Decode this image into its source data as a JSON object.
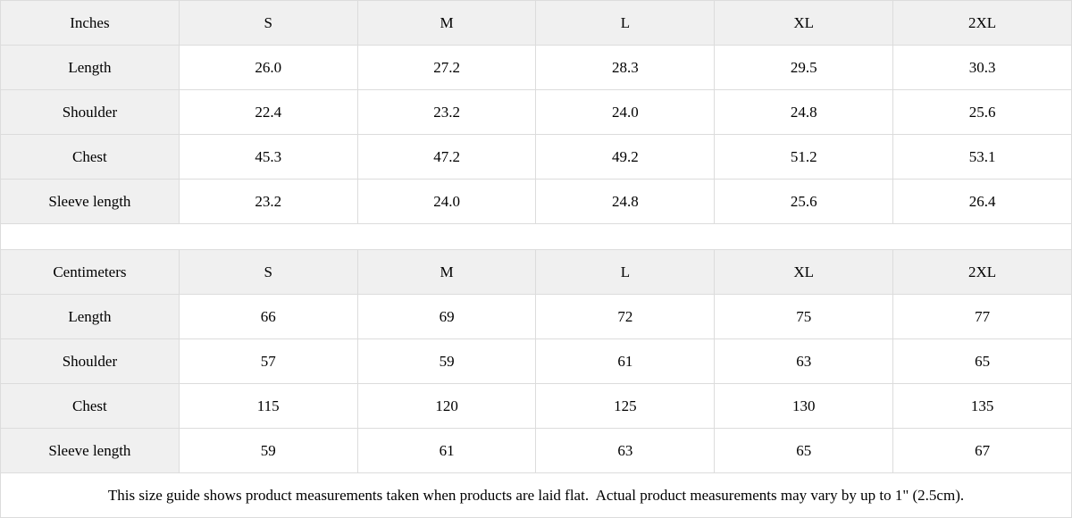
{
  "chart_data": [
    {
      "type": "table",
      "title": "Inches",
      "columns": [
        "Inches",
        "S",
        "M",
        "L",
        "XL",
        "2XL"
      ],
      "rows": [
        {
          "label": "Length",
          "values": [
            "26.0",
            "27.2",
            "28.3",
            "29.5",
            "30.3"
          ]
        },
        {
          "label": "Shoulder",
          "values": [
            "22.4",
            "23.2",
            "24.0",
            "24.8",
            "25.6"
          ]
        },
        {
          "label": "Chest",
          "values": [
            "45.3",
            "47.2",
            "49.2",
            "51.2",
            "53.1"
          ]
        },
        {
          "label": "Sleeve length",
          "values": [
            "23.2",
            "24.0",
            "24.8",
            "25.6",
            "26.4"
          ]
        }
      ]
    },
    {
      "type": "table",
      "title": "Centimeters",
      "columns": [
        "Centimeters",
        "S",
        "M",
        "L",
        "XL",
        "2XL"
      ],
      "rows": [
        {
          "label": "Length",
          "values": [
            "66",
            "69",
            "72",
            "75",
            "77"
          ]
        },
        {
          "label": "Shoulder",
          "values": [
            "57",
            "59",
            "61",
            "63",
            "65"
          ]
        },
        {
          "label": "Chest",
          "values": [
            "115",
            "120",
            "125",
            "130",
            "135"
          ]
        },
        {
          "label": "Sleeve length",
          "values": [
            "59",
            "61",
            "63",
            "65",
            "67"
          ]
        }
      ]
    }
  ],
  "footer_note": "This size guide shows product measurements taken when products are laid flat.  Actual product measurements may vary by up to 1\" (2.5cm).",
  "colors": {
    "header_bg": "#f0f0f0",
    "cell_bg": "#ffffff",
    "border": "#dcdcdc",
    "text": "#000000"
  }
}
